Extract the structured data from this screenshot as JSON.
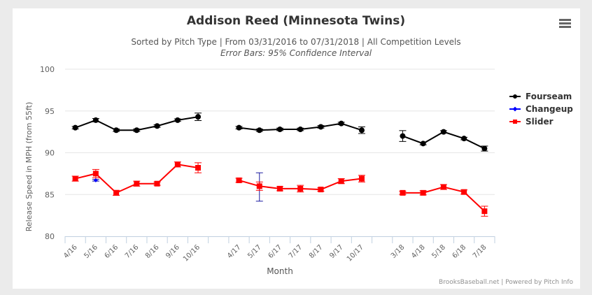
{
  "title": "Addison Reed (Minnesota Twins)",
  "subtitle": "Sorted by Pitch Type | From 03/31/2016 to 07/31/2018 | All Competition Levels",
  "subtitle2": "Error Bars: 95% Confidence Interval",
  "credits": "BrooksBaseball.net | Powered by Pitch Info",
  "menu_icon": "hamburger-menu-icon",
  "chart_data": {
    "type": "line",
    "title": "Addison Reed (Minnesota Twins)",
    "xlabel": "Month",
    "ylabel": "Release Speed in MPH (from 55ft)",
    "ylim": [
      80,
      100
    ],
    "yticks": [
      "80",
      "85",
      "90",
      "95",
      "100"
    ],
    "grid": true,
    "legend_position": "right",
    "categories": [
      "4/16",
      "5/16",
      "6/16",
      "7/16",
      "8/16",
      "9/16",
      "10/16",
      "",
      "4/17",
      "5/17",
      "6/17",
      "7/17",
      "8/17",
      "9/17",
      "10/17",
      "",
      "3/18",
      "4/18",
      "5/18",
      "6/18",
      "7/18"
    ],
    "series": [
      {
        "name": "Fourseam",
        "color": "#000000",
        "marker": "circle",
        "values": [
          93.0,
          93.9,
          92.7,
          92.7,
          93.2,
          93.9,
          94.3,
          null,
          93.0,
          92.7,
          92.8,
          92.8,
          93.1,
          93.5,
          92.7,
          null,
          92.0,
          91.1,
          92.5,
          91.7,
          90.5
        ],
        "errors": [
          0.15,
          0.2,
          0.15,
          0.15,
          0.15,
          0.15,
          0.45,
          null,
          0.15,
          0.15,
          0.15,
          0.15,
          0.15,
          0.15,
          0.4,
          null,
          0.65,
          0.15,
          0.15,
          0.15,
          0.3
        ]
      },
      {
        "name": "Changeup",
        "color": "#0000ff",
        "marker": "diamond",
        "values": [
          null,
          86.7,
          null,
          null,
          null,
          null,
          null,
          null,
          null,
          85.9,
          null,
          null,
          null,
          null,
          null,
          null,
          null,
          null,
          null,
          null,
          null
        ],
        "errors": [
          null,
          0.1,
          null,
          null,
          null,
          null,
          null,
          null,
          null,
          1.7,
          null,
          null,
          null,
          null,
          null,
          null,
          null,
          null,
          null,
          null,
          null
        ]
      },
      {
        "name": "Slider",
        "color": "#ff0000",
        "marker": "square",
        "values": [
          86.9,
          87.5,
          85.2,
          86.3,
          86.3,
          88.6,
          88.2,
          null,
          86.7,
          86.0,
          85.7,
          85.7,
          85.6,
          86.6,
          86.9,
          null,
          85.2,
          85.2,
          85.9,
          85.3,
          83.0
        ],
        "errors": [
          0.3,
          0.5,
          0.3,
          0.3,
          0.2,
          0.3,
          0.6,
          null,
          0.25,
          0.5,
          0.25,
          0.4,
          0.2,
          0.3,
          0.4,
          null,
          0.2,
          0.25,
          0.3,
          0.25,
          0.6
        ]
      }
    ]
  }
}
